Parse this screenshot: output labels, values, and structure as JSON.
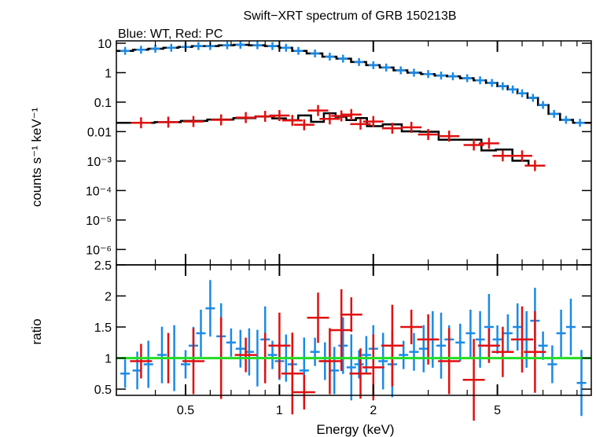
{
  "header": {
    "title": "Swift−XRT spectrum of GRB 150213B",
    "subtitle": "Blue: WT, Red: PC"
  },
  "colors": {
    "wt": "#1a8ae6",
    "pc": "#e01010",
    "model": "#000000",
    "unity": "#22dd22"
  },
  "chart_data": [
    {
      "type": "scatter",
      "panel": "spectrum",
      "xlabel": "Energy (keV)",
      "ylabel": "counts s⁻¹ keV⁻¹",
      "xscale": "log",
      "yscale": "log",
      "xlim": [
        0.3,
        10
      ],
      "ylim": [
        3e-07,
        12
      ],
      "yticks": [
        10,
        1,
        0.1,
        0.01,
        0.001,
        0.0001,
        1e-05,
        1e-06
      ],
      "ytick_labels": [
        "10",
        "1",
        "0.1",
        "0.01",
        "10⁻³",
        "10⁻⁴",
        "10⁻⁵",
        "10⁻⁶"
      ],
      "series": [
        {
          "name": "WT",
          "x": [
            0.32,
            0.36,
            0.4,
            0.45,
            0.5,
            0.55,
            0.6,
            0.68,
            0.75,
            0.85,
            0.95,
            1.05,
            1.15,
            1.3,
            1.45,
            1.6,
            1.8,
            2.0,
            2.2,
            2.45,
            2.7,
            3.0,
            3.3,
            3.6,
            4.0,
            4.4,
            4.8,
            5.2,
            5.6,
            6.0,
            6.5,
            7.0,
            7.6,
            8.3,
            9.2
          ],
          "y": [
            5.5,
            6.0,
            6.5,
            7.0,
            7.5,
            8.0,
            8.0,
            8.5,
            8.8,
            8.5,
            8.0,
            7.0,
            5.5,
            4.5,
            3.5,
            3.0,
            2.3,
            1.8,
            1.5,
            1.2,
            1.0,
            0.9,
            0.8,
            0.75,
            0.65,
            0.55,
            0.45,
            0.35,
            0.27,
            0.2,
            0.14,
            0.08,
            0.04,
            0.025,
            0.02
          ]
        },
        {
          "name": "PC",
          "x": [
            0.36,
            0.44,
            0.53,
            0.65,
            0.78,
            0.9,
            1.0,
            1.1,
            1.2,
            1.33,
            1.45,
            1.58,
            1.7,
            1.82,
            2.0,
            2.3,
            2.65,
            3.0,
            3.5,
            4.2,
            4.7,
            5.2,
            6.0,
            6.6
          ],
          "y": [
            0.02,
            0.021,
            0.022,
            0.025,
            0.03,
            0.033,
            0.035,
            0.024,
            0.017,
            0.052,
            0.027,
            0.034,
            0.038,
            0.018,
            0.022,
            0.013,
            0.014,
            0.008,
            0.007,
            0.0035,
            0.004,
            0.0015,
            0.0015,
            0.0007
          ]
        }
      ]
    },
    {
      "type": "scatter",
      "panel": "ratio",
      "xlabel": "Energy (keV)",
      "ylabel": "ratio",
      "xscale": "log",
      "xlim": [
        0.3,
        10
      ],
      "ylim": [
        0.4,
        2.5
      ],
      "xticks": [
        0.5,
        1,
        2,
        5
      ],
      "xtick_labels": [
        "0.5",
        "1",
        "2",
        "5"
      ],
      "yticks": [
        0.5,
        1,
        1.5,
        2,
        2.5
      ],
      "ytick_labels": [
        "0.5",
        "1",
        "1.5",
        "2",
        "2.5"
      ],
      "series": [
        {
          "name": "WT",
          "x": [
            0.32,
            0.35,
            0.38,
            0.42,
            0.46,
            0.5,
            0.53,
            0.56,
            0.6,
            0.65,
            0.7,
            0.75,
            0.8,
            0.85,
            0.9,
            0.95,
            1.0,
            1.05,
            1.1,
            1.2,
            1.3,
            1.4,
            1.5,
            1.6,
            1.7,
            1.8,
            1.9,
            2.0,
            2.15,
            2.3,
            2.5,
            2.7,
            2.9,
            3.1,
            3.3,
            3.5,
            3.8,
            4.1,
            4.4,
            4.7,
            5.0,
            5.4,
            5.8,
            6.2,
            6.6,
            7.0,
            7.5,
            8.0,
            8.6,
            9.3
          ],
          "y": [
            0.75,
            0.8,
            0.9,
            1.05,
            1.0,
            0.9,
            1.2,
            1.4,
            1.8,
            1.35,
            1.25,
            1.15,
            1.1,
            1.0,
            1.3,
            1.05,
            0.95,
            1.0,
            0.9,
            0.8,
            1.1,
            0.95,
            0.8,
            1.2,
            0.85,
            0.9,
            1.05,
            1.15,
            0.95,
            0.9,
            1.05,
            1.1,
            1.15,
            1.3,
            1.2,
            1.3,
            1.25,
            1.4,
            1.3,
            1.5,
            1.3,
            1.4,
            1.5,
            1.3,
            1.6,
            1.2,
            0.9,
            1.4,
            1.5,
            0.6
          ]
        },
        {
          "name": "PC",
          "x": [
            0.36,
            0.44,
            0.53,
            0.65,
            0.78,
            0.9,
            1.0,
            1.1,
            1.2,
            1.33,
            1.45,
            1.58,
            1.7,
            1.82,
            2.0,
            2.3,
            2.65,
            3.0,
            3.5,
            4.2,
            4.7,
            5.2,
            6.0,
            6.6
          ],
          "y": [
            0.95,
            1.0,
            0.95,
            1.0,
            1.05,
            1.0,
            1.2,
            0.75,
            0.45,
            1.65,
            0.95,
            1.45,
            1.7,
            0.75,
            0.85,
            1.2,
            1.5,
            1.3,
            0.95,
            0.65,
            1.2,
            1.1,
            1.3,
            1.1
          ]
        }
      ],
      "reference_line": 1
    }
  ]
}
